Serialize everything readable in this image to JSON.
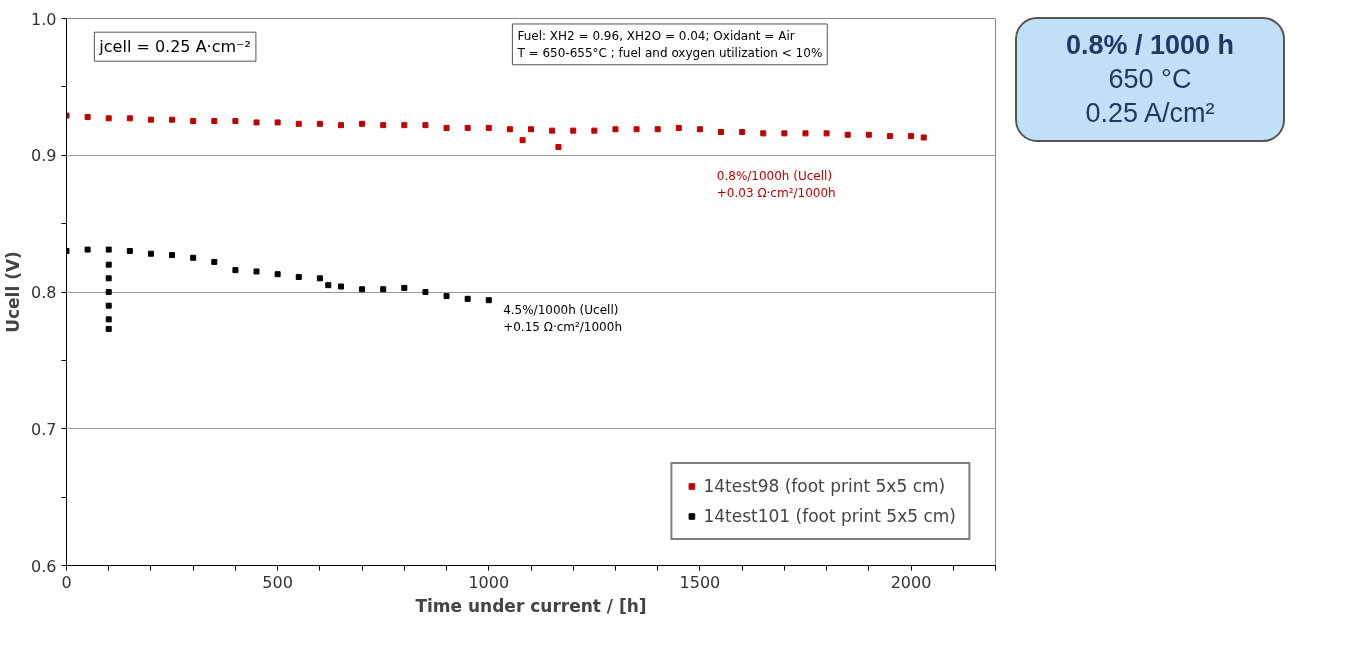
{
  "chart_data": {
    "type": "scatter",
    "xlabel": "Time under current / [h]",
    "ylabel": "Ucell (V)",
    "xlim": [
      0,
      2200
    ],
    "xticks": [
      0,
      {
        "value": 100,
        "label": null
      },
      {
        "value": 200,
        "label": null
      },
      {
        "value": 300,
        "label": null
      },
      {
        "value": 400,
        "label": null
      },
      500,
      {
        "value": 600,
        "label": null
      },
      {
        "value": 700,
        "label": null
      },
      {
        "value": 800,
        "label": null
      },
      {
        "value": 900,
        "label": null
      },
      1000,
      {
        "value": 1100,
        "label": null
      },
      {
        "value": 1200,
        "label": null
      },
      {
        "value": 1300,
        "label": null
      },
      {
        "value": 1400,
        "label": null
      },
      1500,
      {
        "value": 1600,
        "label": null
      },
      {
        "value": 1700,
        "label": null
      },
      {
        "value": 1800,
        "label": null
      },
      {
        "value": 1900,
        "label": null
      },
      2000,
      {
        "value": 2100,
        "label": null
      },
      {
        "value": 2200,
        "label": null
      }
    ],
    "ylim": [
      0.6,
      1.0
    ],
    "yticks": [
      0.6,
      {
        "value": 0.65,
        "label": null
      },
      0.7,
      {
        "value": 0.75,
        "label": null
      },
      0.8,
      {
        "value": 0.85,
        "label": null
      },
      0.9,
      {
        "value": 0.95,
        "label": null
      },
      {
        "value": 1.0,
        "label": "1.0"
      }
    ],
    "grid": "y",
    "legend": "bottom right",
    "marker": "square",
    "series": [
      {
        "name": "14test98 (foot print 5x5 cm)",
        "color": "#c00000",
        "x": [
          0,
          50,
          100,
          150,
          200,
          250,
          300,
          350,
          400,
          450,
          500,
          550,
          600,
          650,
          700,
          750,
          800,
          850,
          900,
          950,
          1000,
          1050,
          1080,
          1100,
          1150,
          1165,
          1200,
          1250,
          1300,
          1350,
          1400,
          1450,
          1500,
          1550,
          1600,
          1650,
          1700,
          1750,
          1800,
          1850,
          1900,
          1950,
          2000,
          2030
        ],
        "values": [
          0.929,
          0.928,
          0.927,
          0.927,
          0.926,
          0.926,
          0.925,
          0.925,
          0.925,
          0.924,
          0.924,
          0.923,
          0.923,
          0.922,
          0.923,
          0.922,
          0.922,
          0.922,
          0.92,
          0.92,
          0.92,
          0.919,
          0.911,
          0.919,
          0.918,
          0.906,
          0.918,
          0.918,
          0.919,
          0.919,
          0.919,
          0.92,
          0.919,
          0.917,
          0.917,
          0.916,
          0.916,
          0.916,
          0.916,
          0.915,
          0.915,
          0.914,
          0.914,
          0.913
        ]
      },
      {
        "name": "14test101 (foot print 5x5 cm)",
        "color": "#000000",
        "x": [
          0,
          50,
          100,
          100,
          100,
          100,
          100,
          100,
          100,
          150,
          200,
          250,
          300,
          350,
          400,
          450,
          500,
          550,
          600,
          620,
          650,
          700,
          750,
          800,
          850,
          900,
          950,
          1000
        ],
        "values": [
          0.83,
          0.831,
          0.831,
          0.82,
          0.81,
          0.8,
          0.79,
          0.78,
          0.773,
          0.83,
          0.828,
          0.827,
          0.825,
          0.822,
          0.816,
          0.815,
          0.813,
          0.811,
          0.81,
          0.805,
          0.804,
          0.802,
          0.802,
          0.803,
          0.8,
          0.797,
          0.795,
          0.794
        ]
      }
    ],
    "annotations": [
      "jcell = 0.25 A·cm⁻²",
      "Fuel: XH2 = 0.96, XH2O = 0.04; Oxidant = Air\nT = 650-655°C ; fuel and oxygen utilization < 10%",
      "0.8%/1000h  (Ucell)\n+0.03 Ω·cm²/1000h",
      "4.5%/1000h  (Ucell)\n+0.15 Ω·cm²/1000h",
      "0.8% / 1000 h\n650 °C\n0.25 A/cm²"
    ]
  }
}
